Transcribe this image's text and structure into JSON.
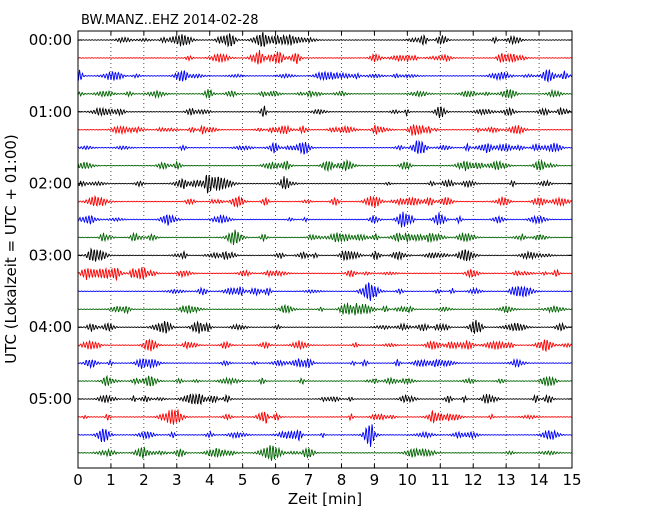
{
  "chart_data": {
    "type": "line",
    "title": "BW.MANZ..EHZ 2014-02-28",
    "xlabel": "Zeit  [min]",
    "ylabel": "UTC (Lokalzeit = UTC + 01:00)",
    "xlim": [
      0,
      15
    ],
    "x_ticks": [
      "0",
      "1",
      "2",
      "3",
      "4",
      "5",
      "6",
      "7",
      "8",
      "9",
      "10",
      "11",
      "12",
      "13",
      "14",
      "15"
    ],
    "y_tick_labels": [
      "00:00",
      "01:00",
      "02:00",
      "03:00",
      "04:00",
      "05:00"
    ],
    "grid": "vertical dotted at each minute",
    "trace_minutes": 15,
    "trace_count": 24,
    "trace_color_cycle": [
      "#000000",
      "#ff0000",
      "#0000ff",
      "#006400"
    ],
    "trace_start_times": [
      "00:00",
      "00:15",
      "00:30",
      "00:45",
      "01:00",
      "01:15",
      "01:30",
      "01:45",
      "02:00",
      "02:15",
      "02:30",
      "02:45",
      "03:00",
      "03:15",
      "03:30",
      "03:45",
      "04:00",
      "04:15",
      "04:30",
      "04:45",
      "05:00",
      "05:15",
      "05:30",
      "05:45"
    ]
  }
}
